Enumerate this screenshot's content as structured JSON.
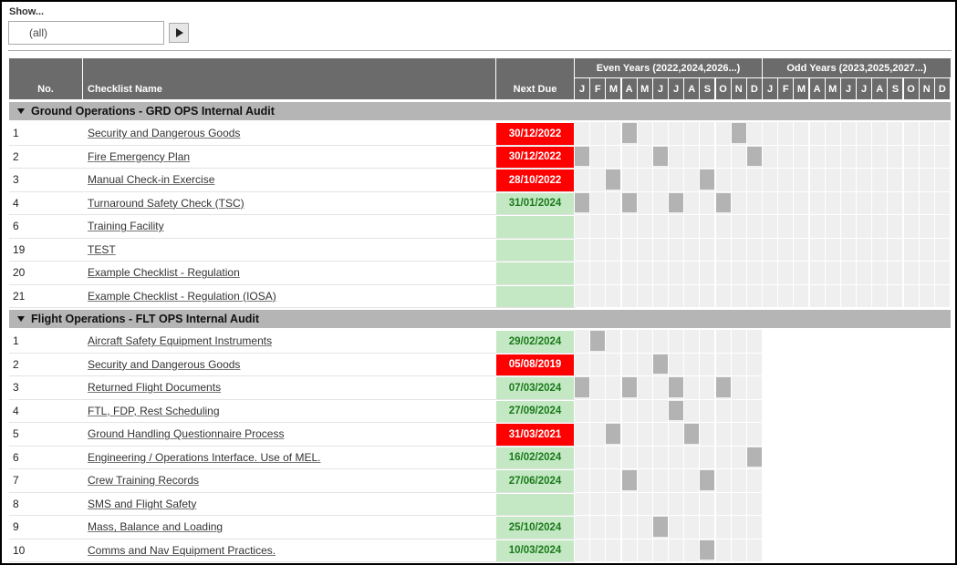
{
  "filter": {
    "label": "Show...",
    "value": "(all)"
  },
  "header": {
    "no": "No.",
    "name": "Checklist Name",
    "due": "Next Due",
    "even_years": "Even Years (2022,2024,2026...)",
    "odd_years": "Odd Years (2023,2025,2027...)",
    "months": [
      "J",
      "F",
      "M",
      "A",
      "M",
      "J",
      "J",
      "A",
      "S",
      "O",
      "N",
      "D"
    ]
  },
  "sections": [
    {
      "title": "Ground Operations - GRD OPS Internal Audit",
      "odd_grid": true,
      "rows": [
        {
          "no": 1,
          "name": "Security and Dangerous Goods",
          "due": "30/12/2022",
          "overdue": true,
          "months": [
            3,
            10
          ]
        },
        {
          "no": 2,
          "name": "Fire Emergency Plan",
          "due": "30/12/2022",
          "overdue": true,
          "months": [
            0,
            5,
            11
          ]
        },
        {
          "no": 3,
          "name": "Manual Check-in Exercise",
          "due": "28/10/2022",
          "overdue": true,
          "months": [
            2,
            8
          ]
        },
        {
          "no": 4,
          "name": "Turnaround Safety Check (TSC)",
          "due": "31/01/2024",
          "overdue": false,
          "months": [
            0,
            3,
            6,
            9
          ]
        },
        {
          "no": 6,
          "name": "Training Facility",
          "due": null,
          "overdue": false,
          "months": []
        },
        {
          "no": 19,
          "name": "TEST",
          "due": null,
          "overdue": false,
          "months": []
        },
        {
          "no": 20,
          "name": "Example Checklist - Regulation",
          "due": null,
          "overdue": false,
          "months": []
        },
        {
          "no": 21,
          "name": "Example Checklist - Regulation (IOSA)",
          "due": null,
          "overdue": false,
          "months": []
        }
      ]
    },
    {
      "title": "Flight Operations - FLT OPS Internal Audit",
      "odd_grid": false,
      "rows": [
        {
          "no": 1,
          "name": "Aircraft Safety Equipment Instruments",
          "due": "29/02/2024",
          "overdue": false,
          "months": [
            1
          ]
        },
        {
          "no": 2,
          "name": "Security and Dangerous Goods",
          "due": "05/08/2019",
          "overdue": true,
          "months": [
            5
          ]
        },
        {
          "no": 3,
          "name": "Returned Flight Documents",
          "due": "07/03/2024",
          "overdue": false,
          "months": [
            0,
            3,
            6,
            9
          ]
        },
        {
          "no": 4,
          "name": "FTL, FDP, Rest Scheduling",
          "due": "27/09/2024",
          "overdue": false,
          "months": [
            6
          ]
        },
        {
          "no": 5,
          "name": "Ground Handling Questionnaire Process",
          "due": "31/03/2021",
          "overdue": true,
          "months": [
            2,
            7
          ]
        },
        {
          "no": 6,
          "name": "Engineering / Operations Interface. Use of MEL.",
          "due": "16/02/2024",
          "overdue": false,
          "months": [
            11
          ]
        },
        {
          "no": 7,
          "name": "Crew Training Records",
          "due": "27/06/2024",
          "overdue": false,
          "months": [
            3,
            8
          ]
        },
        {
          "no": 8,
          "name": "SMS and Flight Safety",
          "due": null,
          "overdue": false,
          "months": []
        },
        {
          "no": 9,
          "name": "Mass, Balance and Loading",
          "due": "25/10/2024",
          "overdue": false,
          "months": [
            5
          ]
        },
        {
          "no": 10,
          "name": "Comms and Nav Equipment Practices.",
          "due": "10/03/2024",
          "overdue": false,
          "months": [
            8
          ]
        }
      ]
    }
  ]
}
